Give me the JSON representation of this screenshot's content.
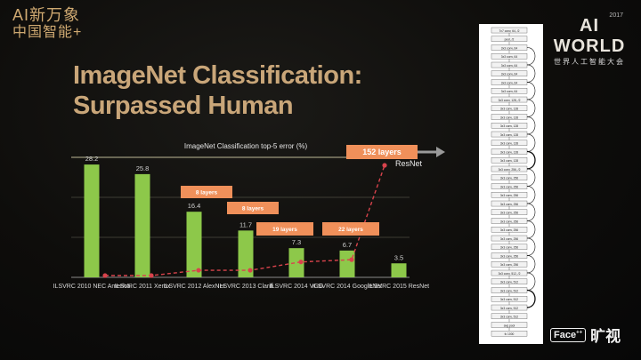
{
  "brand_left": {
    "line1": "AI新万象",
    "line2": "中国智能+"
  },
  "slide": {
    "title_line1": "ImageNet Classification:",
    "title_line2": "Surpassed Human"
  },
  "brand_right": {
    "year": "2017",
    "name": "AI WORLD",
    "tagline": "世界人工智能大会"
  },
  "face_logo": {
    "text": "Face",
    "sup": "++",
    "cn": "旷视"
  },
  "colors": {
    "bar": "#8dc84a",
    "line": "#d8434c",
    "annotation": "#f0905a",
    "title": "#c9a679"
  },
  "chart_data": {
    "type": "bar",
    "title": "ImageNet Classification top-5 error (%)",
    "categories": [
      "ILSVRC 2010 NEC America",
      "ILSVRC 2011 Xerox",
      "ILSVRC 2012 AlexNet",
      "ILSVRC 2013 Clarifi",
      "ILSVRC 2014 VGG",
      "ILSVRC 2014 GoogleNet",
      "ILSVRC 2015 ResNet"
    ],
    "values": [
      28.2,
      25.8,
      16.4,
      11.7,
      7.3,
      6.7,
      3.5
    ],
    "value_labels": [
      "28.2",
      "25.8",
      "16.4",
      "11.7",
      "7.3",
      "6.7",
      "3.5"
    ],
    "ylim": [
      0,
      30
    ],
    "grid": true,
    "depth_line": {
      "layers": [
        1,
        1,
        8,
        8,
        19,
        22,
        152
      ],
      "labels": [
        "8 layers",
        "8 layers",
        "19 layers",
        "22 layers",
        "152 layers"
      ],
      "resnet_label": "ResNet"
    }
  },
  "resnet_diagram": {
    "top_label": "7x7 conv, 64, /2",
    "pool_label": "pool, /2",
    "bottom_label": "avg pool",
    "fc_label": "fc 1000",
    "layers": [
      "3x3 conv, 64",
      "3x3 conv, 64",
      "3x3 conv, 64",
      "3x3 conv, 64",
      "3x3 conv, 64",
      "3x3 conv, 64",
      "3x3 conv, 128, /2",
      "3x3 conv, 128",
      "3x3 conv, 128",
      "3x3 conv, 128",
      "3x3 conv, 128",
      "3x3 conv, 128",
      "3x3 conv, 128",
      "3x3 conv, 128",
      "3x3 conv, 256, /2",
      "3x3 conv, 256",
      "3x3 conv, 256",
      "3x3 conv, 256",
      "3x3 conv, 256",
      "3x3 conv, 256",
      "3x3 conv, 256",
      "3x3 conv, 256",
      "3x3 conv, 256",
      "3x3 conv, 256",
      "3x3 conv, 256",
      "3x3 conv, 256",
      "3x3 conv, 512, /2",
      "3x3 conv, 512",
      "3x3 conv, 512",
      "3x3 conv, 512",
      "3x3 conv, 512",
      "3x3 conv, 512"
    ]
  }
}
